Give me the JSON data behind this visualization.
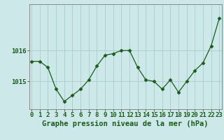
{
  "hours": [
    0,
    1,
    2,
    3,
    4,
    5,
    6,
    7,
    8,
    9,
    10,
    11,
    12,
    13,
    14,
    15,
    16,
    17,
    18,
    19,
    20,
    21,
    22,
    23
  ],
  "pressure": [
    1015.65,
    1015.65,
    1015.45,
    1014.75,
    1014.35,
    1014.55,
    1014.75,
    1015.05,
    1015.5,
    1015.85,
    1015.9,
    1016.0,
    1016.0,
    1015.45,
    1015.05,
    1015.0,
    1014.75,
    1015.05,
    1014.65,
    1015.0,
    1015.35,
    1015.6,
    1016.15,
    1017.05
  ],
  "line_color": "#1a5c1a",
  "marker": "D",
  "marker_size": 2.5,
  "bg_color": "#cce8e8",
  "grid_color": "#aacccc",
  "ylabel_ticks": [
    1015,
    1016
  ],
  "ylim": [
    1014.1,
    1017.5
  ],
  "xlim": [
    -0.3,
    23.3
  ],
  "xlabel": "Graphe pression niveau de la mer (hPa)",
  "xlabel_fontsize": 7.5,
  "tick_fontsize": 6.5,
  "line_color_dark": "#1a5c1a",
  "spine_color": "#888888"
}
